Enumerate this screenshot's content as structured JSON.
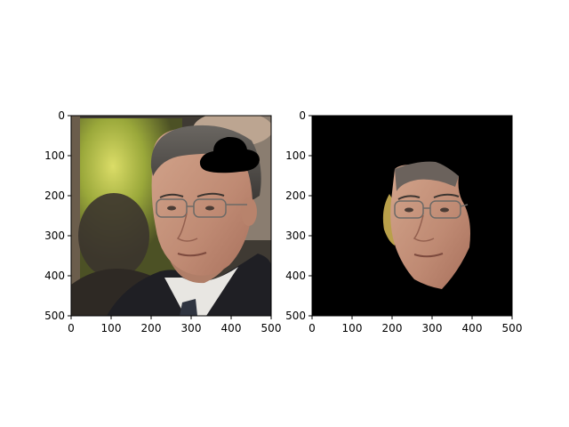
{
  "chart_data": [
    {
      "type": "image",
      "content": "photo of a man with glasses in a dark suit, white shirt and dark tie; a black occlusion blob near the top-right of his head",
      "xlim": [
        0,
        500
      ],
      "ylim": [
        500,
        0
      ],
      "xticks": [
        0,
        100,
        200,
        300,
        400,
        500
      ],
      "yticks": [
        0,
        100,
        200,
        300,
        400,
        500
      ],
      "tick_labels_x": [
        "0",
        "100",
        "200",
        "300",
        "400",
        "500"
      ],
      "tick_labels_y": [
        "0",
        "100",
        "200",
        "300",
        "400",
        "500"
      ],
      "xlabel": "",
      "ylabel": "",
      "title": "",
      "grid": false
    },
    {
      "type": "image",
      "content": "same face segmented out; everything outside the face is black",
      "xlim": [
        0,
        500
      ],
      "ylim": [
        500,
        0
      ],
      "xticks": [
        0,
        100,
        200,
        300,
        400,
        500
      ],
      "yticks": [
        0,
        100,
        200,
        300,
        400,
        500
      ],
      "tick_labels_x": [
        "0",
        "100",
        "200",
        "300",
        "400",
        "500"
      ],
      "tick_labels_y": [
        "0",
        "100",
        "200",
        "300",
        "400",
        "500"
      ],
      "xlabel": "",
      "ylabel": "",
      "title": "",
      "grid": false
    }
  ],
  "colors": {
    "background_left": "#4a4338",
    "mask_black": "#000000",
    "suit": "#1f1f24",
    "skin": "#c7977f",
    "hair": "#54504c",
    "yellow_glow": "#c2c94a"
  }
}
